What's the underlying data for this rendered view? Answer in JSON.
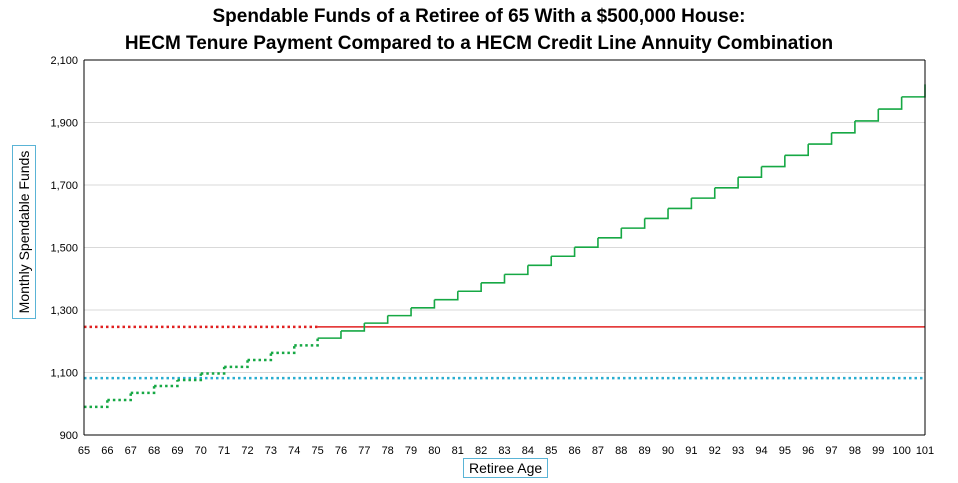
{
  "chart_data": {
    "type": "line",
    "title": "Spendable Funds of a Retiree of 65 With a $500,000 House:",
    "subtitle": "HECM Tenure Payment Compared to a HECM Credit Line Annuity Combination",
    "xlabel": "Retiree Age",
    "ylabel": "Monthly Spendable Funds",
    "xlim": [
      65,
      101
    ],
    "ylim": [
      900,
      2100
    ],
    "x_ticks": [
      65,
      66,
      67,
      68,
      69,
      70,
      71,
      72,
      73,
      74,
      75,
      76,
      77,
      78,
      79,
      80,
      81,
      82,
      83,
      84,
      85,
      86,
      87,
      88,
      89,
      90,
      91,
      92,
      93,
      94,
      95,
      96,
      97,
      98,
      99,
      100,
      101
    ],
    "y_ticks": [
      900,
      1100,
      1300,
      1500,
      1700,
      1900,
      2100
    ],
    "y_tick_labels": [
      "900",
      "1,100",
      "1,300",
      "1,500",
      "1,700",
      "1,900",
      "2,100"
    ],
    "grid": true,
    "series": [
      {
        "color": "#e02020",
        "style": "dotted-then-solid",
        "dotted_until_x": 75,
        "x": [
          65,
          101
        ],
        "values": [
          1246,
          1246
        ]
      },
      {
        "color": "#29aed0",
        "style": "dotted",
        "x": [
          65,
          101
        ],
        "values": [
          1082,
          1082
        ]
      },
      {
        "color": "#16a844",
        "style": "step-dotted-then-solid",
        "dotted_until_x": 75,
        "x": [
          65,
          66,
          67,
          68,
          69,
          70,
          71,
          72,
          73,
          74,
          75,
          76,
          77,
          78,
          79,
          80,
          81,
          82,
          83,
          84,
          85,
          86,
          87,
          88,
          89,
          90,
          91,
          92,
          93,
          94,
          95,
          96,
          97,
          98,
          99,
          100,
          101
        ],
        "values": [
          990,
          1012,
          1035,
          1057,
          1076,
          1097,
          1118,
          1140,
          1163,
          1187,
          1210,
          1233,
          1258,
          1282,
          1307,
          1333,
          1360,
          1387,
          1414,
          1443,
          1472,
          1501,
          1531,
          1562,
          1593,
          1625,
          1658,
          1691,
          1725,
          1759,
          1795,
          1831,
          1867,
          1905,
          1943,
          1982,
          2022
        ]
      }
    ]
  }
}
